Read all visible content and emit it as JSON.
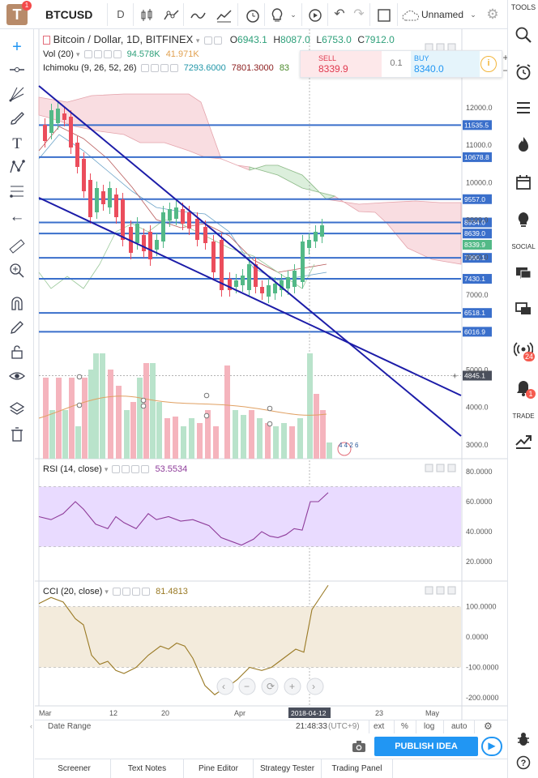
{
  "topbar": {
    "logo": "T",
    "logo_badge": "1",
    "symbol": "BTCUSD",
    "interval": "D",
    "layout_name": "Unnamed",
    "tools_label": "TOOLS"
  },
  "chart_header": {
    "title": "Bitcoin / Dollar, 1D, BITFINEX",
    "open_label": "O",
    "open": "6943.1",
    "high_label": "H",
    "high": "8087.0",
    "low_label": "L",
    "low": "6753.0",
    "close_label": "C",
    "close": "7912.0"
  },
  "volume_legend": {
    "name": "Vol (20)",
    "value1": "94.578K",
    "value2": "41.971K"
  },
  "ichimoku_legend": {
    "name": "Ichimoku (9, 26, 52, 26)",
    "v1": "7293.6000",
    "v2": "7801.3000",
    "v3": "83"
  },
  "trade_widget": {
    "sell_label": "SELL",
    "sell_price": "8339.9",
    "spread": "0.1",
    "buy_label": "BUY",
    "buy_price": "8340.0"
  },
  "price_axis": {
    "ticks": [
      "12000.0",
      "11000.0",
      "10000.0",
      "9000.0",
      "8000.0",
      "7000.0",
      "5000.0",
      "4000.0",
      "3000.0"
    ],
    "line_labels": [
      "11535.5",
      "10678.8",
      "9557.0",
      "8934.0",
      "8639.0",
      "8339.9",
      "7990.1",
      "7430.1",
      "6518.1",
      "6016.9",
      "4845.1"
    ]
  },
  "rsi": {
    "label": "RSI (14, close)",
    "value": "53.5534",
    "ticks": [
      "80.0000",
      "60.0000",
      "40.0000",
      "20.0000"
    ]
  },
  "cci": {
    "label": "CCI (20, close)",
    "value": "81.4813",
    "ticks": [
      "100.0000",
      "0.0000",
      "-100.0000",
      "-200.0000"
    ]
  },
  "time_axis": {
    "ticks": [
      "Mar",
      "12",
      "20",
      "Apr",
      "23",
      "May"
    ],
    "cursor_date": "2018-04-12"
  },
  "bottom_bar": {
    "date_range": "Date Range",
    "time": "21:48:33",
    "tz": "(UTC+9)",
    "ext": "ext",
    "percent": "%",
    "log": "log",
    "auto": "auto"
  },
  "publish_label": "PUBLISH IDEA",
  "bottom_tabs": [
    "Screener",
    "Text Notes",
    "Pine Editor",
    "Strategy Tester",
    "Trading Panel"
  ],
  "right_toolbar": {
    "social_label": "SOCIAL",
    "trade_label": "TRADE",
    "chat_count": "24",
    "alert_count": "1"
  },
  "volume_overlay_digits": "4 4 2 6",
  "colors": {
    "up": "#53b987",
    "down": "#eb4d5c",
    "hline": "#3a6fcb",
    "trendline": "#1c1ca8",
    "rsi_band": "#e9dbff",
    "cci_band": "#f3ebdc",
    "publish": "#2196f3"
  }
}
